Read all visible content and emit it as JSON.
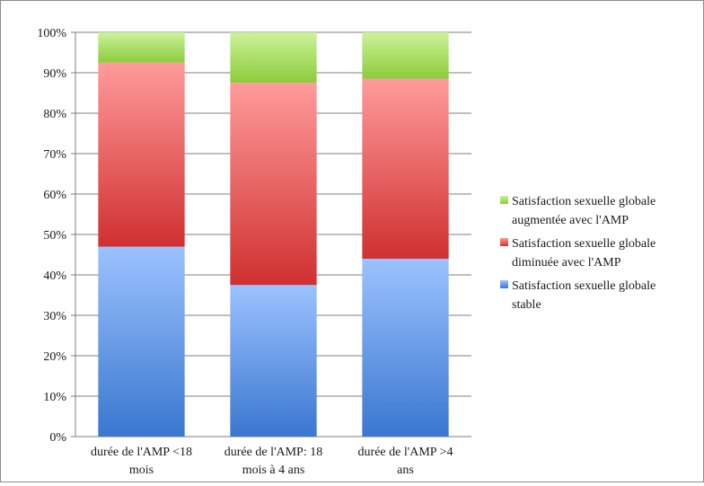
{
  "chart_data": {
    "type": "bar",
    "stacked": true,
    "percent": true,
    "categories": [
      [
        "durée de l'AMP <18",
        "mois"
      ],
      [
        "durée de l'AMP: 18",
        "mois à 4 ans"
      ],
      [
        "durée de l'AMP >4",
        "ans"
      ]
    ],
    "series": [
      {
        "name": [
          "Satisfaction sexuelle globale",
          "stable"
        ],
        "values": [
          47,
          37.5,
          44
        ],
        "color_top": "#9cc2ff",
        "color_bottom": "#3a77cf"
      },
      {
        "name": [
          "Satisfaction sexuelle globale",
          "diminuée avec l'AMP"
        ],
        "values": [
          45.5,
          50,
          44.5
        ],
        "color_top": "#ff9b9b",
        "color_bottom": "#d03030"
      },
      {
        "name": [
          "Satisfaction sexuelle globale",
          "augmentée avec l'AMP"
        ],
        "values": [
          7.5,
          12.5,
          11.5
        ],
        "color_top": "#cdf29a",
        "color_bottom": "#8ccc3c"
      }
    ],
    "y_ticks": [
      "0%",
      "10%",
      "20%",
      "30%",
      "40%",
      "50%",
      "60%",
      "70%",
      "80%",
      "90%",
      "100%"
    ],
    "ylim": [
      0,
      100
    ],
    "grid": true,
    "legend": "right"
  }
}
